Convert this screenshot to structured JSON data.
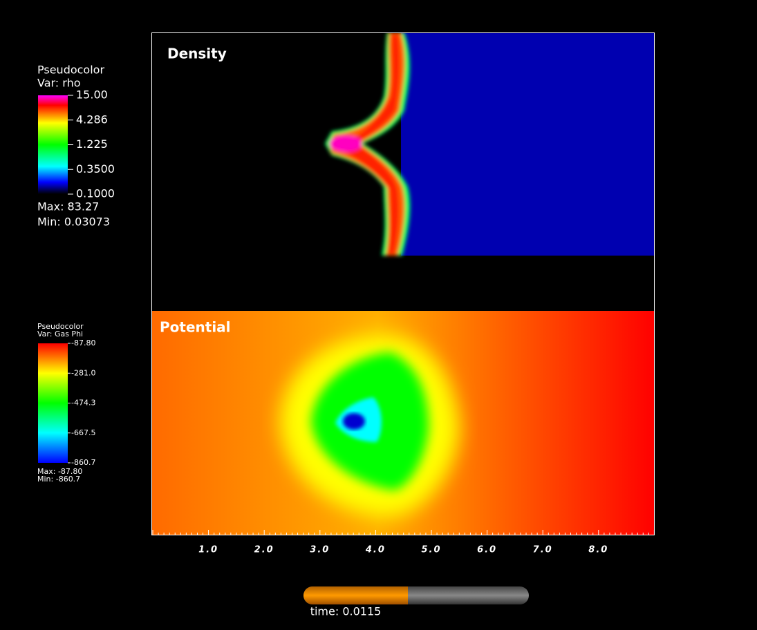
{
  "top_legend": {
    "title": "Pseudocolor",
    "variable": "Var: rho",
    "ticks": [
      "15.00",
      "4.286",
      "1.225",
      "0.3500",
      "0.1000"
    ],
    "max": "Max:  83.27",
    "min": "Min:  0.03073"
  },
  "top_panel": {
    "label": "Density"
  },
  "bottom_legend": {
    "title": "Pseudocolor",
    "variable": "Var: Gas Phi",
    "ticks": [
      "-87.80",
      "-281.0",
      "-474.3",
      "-667.5",
      "-860.7"
    ],
    "max": "Max: -87.80",
    "min": "Min: -860.7"
  },
  "bottom_panel": {
    "label": "Potential"
  },
  "x_axis": {
    "ticks": [
      "1.0",
      "2.0",
      "3.0",
      "4.0",
      "5.0",
      "6.0",
      "7.0",
      "8.0"
    ]
  },
  "time_slider": {
    "label": "time: 0.0115"
  }
}
